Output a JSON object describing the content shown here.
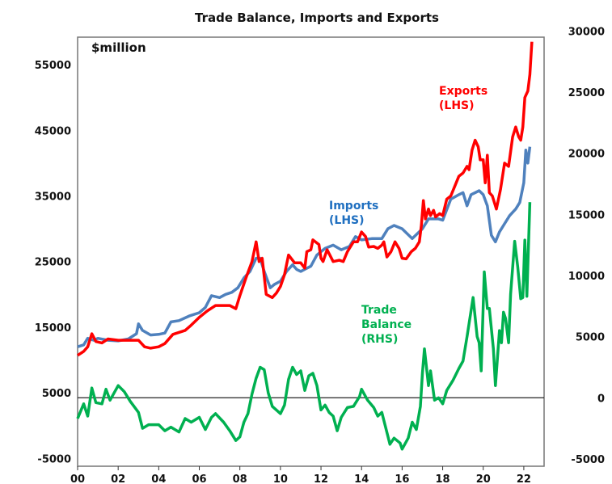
{
  "chart_data": {
    "type": "line",
    "title": "Trade Balance, Imports and Exports",
    "unit_label": "$million",
    "xlabel": "",
    "x_ticks": [
      "00",
      "02",
      "04",
      "06",
      "08",
      "10",
      "12",
      "14",
      "16",
      "18",
      "20",
      "22"
    ],
    "x_tick_years": [
      2000,
      2002,
      2004,
      2006,
      2008,
      2010,
      2012,
      2014,
      2016,
      2018,
      2020,
      2022
    ],
    "xlim": [
      2000,
      2023
    ],
    "y_left": {
      "ticks": [
        -5000,
        5000,
        15000,
        25000,
        35000,
        45000,
        55000
      ],
      "ylim": [
        -6200,
        59200
      ]
    },
    "y_right": {
      "ticks": [
        -5000,
        0,
        5000,
        10000,
        15000,
        20000,
        25000,
        30000
      ],
      "ylim": [
        -5600,
        29500
      ]
    },
    "grid": false,
    "zero_line_axis": "right",
    "series": [
      {
        "name": "Exports (LHS)",
        "label_lines": [
          "Exports",
          "(LHS)"
        ],
        "axis": "left",
        "color": "#ff0000",
        "points": [
          [
            2000.0,
            10700
          ],
          [
            2000.3,
            11300
          ],
          [
            2000.5,
            12000
          ],
          [
            2000.7,
            14000
          ],
          [
            2000.9,
            12800
          ],
          [
            2001.2,
            12600
          ],
          [
            2001.5,
            13200
          ],
          [
            2002.0,
            13000
          ],
          [
            2002.5,
            13000
          ],
          [
            2003.0,
            13000
          ],
          [
            2003.3,
            12000
          ],
          [
            2003.6,
            11800
          ],
          [
            2004.0,
            12000
          ],
          [
            2004.3,
            12500
          ],
          [
            2004.7,
            13900
          ],
          [
            2005.3,
            14500
          ],
          [
            2005.6,
            15300
          ],
          [
            2006.0,
            16500
          ],
          [
            2006.4,
            17500
          ],
          [
            2006.8,
            18300
          ],
          [
            2007.5,
            18300
          ],
          [
            2007.8,
            17800
          ],
          [
            2008.0,
            19800
          ],
          [
            2008.3,
            22500
          ],
          [
            2008.6,
            25000
          ],
          [
            2008.8,
            28000
          ],
          [
            2008.95,
            25000
          ],
          [
            2009.1,
            25500
          ],
          [
            2009.3,
            20000
          ],
          [
            2009.6,
            19500
          ],
          [
            2009.8,
            20200
          ],
          [
            2010.0,
            21200
          ],
          [
            2010.2,
            23000
          ],
          [
            2010.4,
            26000
          ],
          [
            2010.7,
            24800
          ],
          [
            2011.0,
            24800
          ],
          [
            2011.2,
            24000
          ],
          [
            2011.3,
            26500
          ],
          [
            2011.5,
            26800
          ],
          [
            2011.6,
            28300
          ],
          [
            2011.9,
            27600
          ],
          [
            2012.0,
            25500
          ],
          [
            2012.1,
            25000
          ],
          [
            2012.3,
            26800
          ],
          [
            2012.6,
            25000
          ],
          [
            2012.9,
            25200
          ],
          [
            2013.1,
            25000
          ],
          [
            2013.3,
            26500
          ],
          [
            2013.6,
            28000
          ],
          [
            2013.8,
            28000
          ],
          [
            2014.0,
            29500
          ],
          [
            2014.2,
            28800
          ],
          [
            2014.35,
            27200
          ],
          [
            2014.6,
            27300
          ],
          [
            2014.8,
            27000
          ],
          [
            2015.0,
            27500
          ],
          [
            2015.1,
            28000
          ],
          [
            2015.25,
            25700
          ],
          [
            2015.45,
            26500
          ],
          [
            2015.65,
            28000
          ],
          [
            2015.85,
            27000
          ],
          [
            2016.0,
            25500
          ],
          [
            2016.2,
            25400
          ],
          [
            2016.45,
            26500
          ],
          [
            2016.65,
            27000
          ],
          [
            2016.85,
            28000
          ],
          [
            2016.95,
            30500
          ],
          [
            2017.05,
            34300
          ],
          [
            2017.15,
            31500
          ],
          [
            2017.3,
            33000
          ],
          [
            2017.4,
            32000
          ],
          [
            2017.55,
            32800
          ],
          [
            2017.65,
            31800
          ],
          [
            2017.85,
            32300
          ],
          [
            2018.0,
            32000
          ],
          [
            2018.2,
            34500
          ],
          [
            2018.4,
            35000
          ],
          [
            2018.6,
            36500
          ],
          [
            2018.8,
            38000
          ],
          [
            2019.0,
            38500
          ],
          [
            2019.2,
            39500
          ],
          [
            2019.3,
            39000
          ],
          [
            2019.45,
            42000
          ],
          [
            2019.6,
            43500
          ],
          [
            2019.75,
            42500
          ],
          [
            2019.85,
            40500
          ],
          [
            2020.0,
            40500
          ],
          [
            2020.1,
            37000
          ],
          [
            2020.2,
            41200
          ],
          [
            2020.3,
            35500
          ],
          [
            2020.45,
            35000
          ],
          [
            2020.65,
            33000
          ],
          [
            2020.85,
            36000
          ],
          [
            2021.05,
            40000
          ],
          [
            2021.25,
            39500
          ],
          [
            2021.45,
            44000
          ],
          [
            2021.6,
            45500
          ],
          [
            2021.75,
            44000
          ],
          [
            2021.85,
            43500
          ],
          [
            2021.95,
            45500
          ],
          [
            2022.05,
            50000
          ],
          [
            2022.2,
            51000
          ],
          [
            2022.3,
            53500
          ],
          [
            2022.4,
            58500
          ]
        ]
      },
      {
        "name": "Imports (LHS)",
        "label_lines": [
          "Imports",
          "(LHS)"
        ],
        "axis": "left",
        "color": "#4f81bd",
        "points": [
          [
            2000.0,
            12000
          ],
          [
            2000.3,
            12300
          ],
          [
            2000.5,
            13300
          ],
          [
            2000.8,
            13000
          ],
          [
            2001.0,
            13300
          ],
          [
            2001.5,
            13000
          ],
          [
            2002.0,
            12900
          ],
          [
            2002.5,
            13200
          ],
          [
            2002.9,
            14000
          ],
          [
            2003.0,
            15500
          ],
          [
            2003.2,
            14500
          ],
          [
            2003.6,
            13800
          ],
          [
            2004.0,
            13900
          ],
          [
            2004.3,
            14100
          ],
          [
            2004.6,
            15800
          ],
          [
            2005.0,
            16000
          ],
          [
            2005.5,
            16700
          ],
          [
            2006.0,
            17200
          ],
          [
            2006.3,
            18000
          ],
          [
            2006.6,
            19800
          ],
          [
            2007.0,
            19500
          ],
          [
            2007.3,
            20000
          ],
          [
            2007.6,
            20300
          ],
          [
            2007.9,
            21000
          ],
          [
            2008.2,
            22500
          ],
          [
            2008.5,
            23500
          ],
          [
            2008.8,
            25500
          ],
          [
            2009.0,
            25500
          ],
          [
            2009.2,
            23500
          ],
          [
            2009.5,
            21000
          ],
          [
            2009.7,
            21500
          ],
          [
            2010.0,
            22000
          ],
          [
            2010.3,
            23500
          ],
          [
            2010.6,
            24500
          ],
          [
            2010.8,
            23800
          ],
          [
            2011.0,
            23500
          ],
          [
            2011.5,
            24300
          ],
          [
            2011.8,
            26000
          ],
          [
            2012.2,
            27000
          ],
          [
            2012.6,
            27500
          ],
          [
            2013.0,
            26800
          ],
          [
            2013.4,
            27300
          ],
          [
            2013.7,
            28800
          ],
          [
            2014.0,
            28300
          ],
          [
            2014.5,
            28500
          ],
          [
            2015.0,
            28500
          ],
          [
            2015.3,
            30000
          ],
          [
            2015.6,
            30500
          ],
          [
            2016.0,
            30000
          ],
          [
            2016.5,
            28500
          ],
          [
            2017.0,
            30000
          ],
          [
            2017.3,
            31500
          ],
          [
            2017.8,
            31500
          ],
          [
            2018.0,
            31300
          ],
          [
            2018.4,
            34500
          ],
          [
            2018.8,
            35200
          ],
          [
            2019.0,
            35500
          ],
          [
            2019.2,
            33500
          ],
          [
            2019.4,
            35200
          ],
          [
            2019.8,
            35800
          ],
          [
            2020.0,
            35200
          ],
          [
            2020.2,
            33500
          ],
          [
            2020.4,
            29000
          ],
          [
            2020.6,
            28000
          ],
          [
            2020.8,
            29500
          ],
          [
            2021.0,
            30500
          ],
          [
            2021.3,
            32000
          ],
          [
            2021.6,
            33000
          ],
          [
            2021.8,
            34000
          ],
          [
            2022.0,
            37000
          ],
          [
            2022.1,
            42000
          ],
          [
            2022.2,
            40000
          ],
          [
            2022.3,
            42500
          ]
        ]
      },
      {
        "name": "Trade Balance (RHS)",
        "label_lines": [
          "Trade",
          "Balance",
          "(RHS)"
        ],
        "axis": "right",
        "color": "#00b050",
        "points": [
          [
            2000.0,
            -1700
          ],
          [
            2000.3,
            -500
          ],
          [
            2000.5,
            -1500
          ],
          [
            2000.7,
            800
          ],
          [
            2000.9,
            -400
          ],
          [
            2001.2,
            -500
          ],
          [
            2001.4,
            700
          ],
          [
            2001.6,
            -200
          ],
          [
            2002.0,
            1000
          ],
          [
            2002.3,
            500
          ],
          [
            2002.6,
            -300
          ],
          [
            2003.0,
            -1200
          ],
          [
            2003.2,
            -2500
          ],
          [
            2003.5,
            -2200
          ],
          [
            2004.0,
            -2200
          ],
          [
            2004.3,
            -2700
          ],
          [
            2004.6,
            -2400
          ],
          [
            2005.0,
            -2800
          ],
          [
            2005.3,
            -1700
          ],
          [
            2005.6,
            -2000
          ],
          [
            2006.0,
            -1600
          ],
          [
            2006.3,
            -2600
          ],
          [
            2006.6,
            -1600
          ],
          [
            2006.8,
            -1300
          ],
          [
            2007.2,
            -2000
          ],
          [
            2007.5,
            -2700
          ],
          [
            2007.8,
            -3500
          ],
          [
            2008.0,
            -3200
          ],
          [
            2008.2,
            -2000
          ],
          [
            2008.4,
            -1300
          ],
          [
            2008.6,
            300
          ],
          [
            2008.8,
            1600
          ],
          [
            2009.0,
            2500
          ],
          [
            2009.2,
            2300
          ],
          [
            2009.4,
            400
          ],
          [
            2009.6,
            -700
          ],
          [
            2010.0,
            -1300
          ],
          [
            2010.2,
            -600
          ],
          [
            2010.4,
            1500
          ],
          [
            2010.6,
            2500
          ],
          [
            2010.8,
            1900
          ],
          [
            2011.0,
            2200
          ],
          [
            2011.2,
            600
          ],
          [
            2011.4,
            1800
          ],
          [
            2011.6,
            2000
          ],
          [
            2011.8,
            1000
          ],
          [
            2012.0,
            -1000
          ],
          [
            2012.2,
            -600
          ],
          [
            2012.4,
            -1200
          ],
          [
            2012.6,
            -1500
          ],
          [
            2012.8,
            -2700
          ],
          [
            2013.0,
            -1600
          ],
          [
            2013.3,
            -800
          ],
          [
            2013.6,
            -700
          ],
          [
            2013.9,
            100
          ],
          [
            2014.0,
            700
          ],
          [
            2014.3,
            -200
          ],
          [
            2014.6,
            -800
          ],
          [
            2014.8,
            -1500
          ],
          [
            2015.0,
            -1200
          ],
          [
            2015.2,
            -2500
          ],
          [
            2015.4,
            -3800
          ],
          [
            2015.6,
            -3300
          ],
          [
            2015.9,
            -3700
          ],
          [
            2016.0,
            -4200
          ],
          [
            2016.3,
            -3300
          ],
          [
            2016.5,
            -2000
          ],
          [
            2016.7,
            -2600
          ],
          [
            2016.9,
            -700
          ],
          [
            2017.0,
            2000
          ],
          [
            2017.1,
            4000
          ],
          [
            2017.3,
            1000
          ],
          [
            2017.4,
            2200
          ],
          [
            2017.6,
            -200
          ],
          [
            2017.8,
            0
          ],
          [
            2018.0,
            -500
          ],
          [
            2018.2,
            600
          ],
          [
            2018.5,
            1400
          ],
          [
            2018.8,
            2400
          ],
          [
            2019.0,
            3000
          ],
          [
            2019.2,
            5000
          ],
          [
            2019.5,
            8200
          ],
          [
            2019.7,
            5000
          ],
          [
            2019.8,
            4500
          ],
          [
            2019.9,
            2200
          ],
          [
            2020.05,
            10300
          ],
          [
            2020.2,
            7300
          ],
          [
            2020.3,
            7300
          ],
          [
            2020.5,
            4000
          ],
          [
            2020.6,
            1000
          ],
          [
            2020.8,
            5500
          ],
          [
            2020.9,
            4500
          ],
          [
            2021.0,
            7000
          ],
          [
            2021.1,
            6500
          ],
          [
            2021.25,
            4500
          ],
          [
            2021.35,
            8500
          ],
          [
            2021.55,
            12800
          ],
          [
            2021.7,
            10700
          ],
          [
            2021.85,
            8100
          ],
          [
            2021.95,
            8200
          ],
          [
            2022.05,
            12900
          ],
          [
            2022.15,
            8300
          ],
          [
            2022.3,
            16000
          ]
        ]
      }
    ]
  }
}
